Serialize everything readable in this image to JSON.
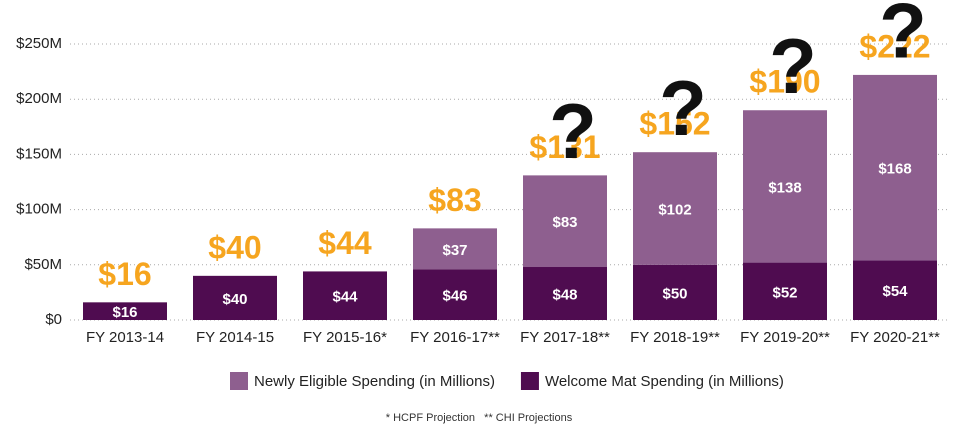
{
  "chart_data": {
    "type": "stacked_bar",
    "categories": [
      "FY 2013-14",
      "FY 2014-15",
      "FY 2015-16*",
      "FY 2016-17**",
      "FY 2017-18**",
      "FY 2018-19**",
      "FY 2019-20**",
      "FY 2020-21**"
    ],
    "series": [
      {
        "name": "Welcome Mat Spending (in Millions)",
        "color": "#4f0c50",
        "values": [
          16,
          40,
          44,
          46,
          48,
          50,
          52,
          54
        ],
        "value_labels": [
          "$16",
          "$40",
          "$44",
          "$46",
          "$48",
          "$50",
          "$52",
          "$54"
        ]
      },
      {
        "name": "Newly Eligible Spending (in Millions)",
        "color": "#8e5f8f",
        "values": [
          null,
          null,
          null,
          37,
          83,
          102,
          138,
          168
        ],
        "value_labels": [
          null,
          null,
          null,
          "$37",
          "$83",
          "$102",
          "$138",
          "$168"
        ]
      }
    ],
    "totals": {
      "values": [
        16,
        40,
        44,
        83,
        131,
        152,
        190,
        222
      ],
      "value_labels": [
        "$16",
        "$40",
        "$44",
        "$83",
        "$131",
        "$152",
        "$190",
        "$222"
      ],
      "color": "#f6a51f"
    },
    "annotations": [
      "?",
      "?",
      "?",
      "?"
    ],
    "ylim": [
      0,
      250
    ],
    "yticks": [
      {
        "value": 0,
        "label": "$0"
      },
      {
        "value": 50,
        "label": "$50M"
      },
      {
        "value": 100,
        "label": "$100M"
      },
      {
        "value": 150,
        "label": "$150M"
      },
      {
        "value": 200,
        "label": "$200M"
      },
      {
        "value": 250,
        "label": "$250M"
      }
    ],
    "grid": true,
    "legend": "bottom",
    "footnote": "* HCPF Projection   ** CHI Projections"
  }
}
